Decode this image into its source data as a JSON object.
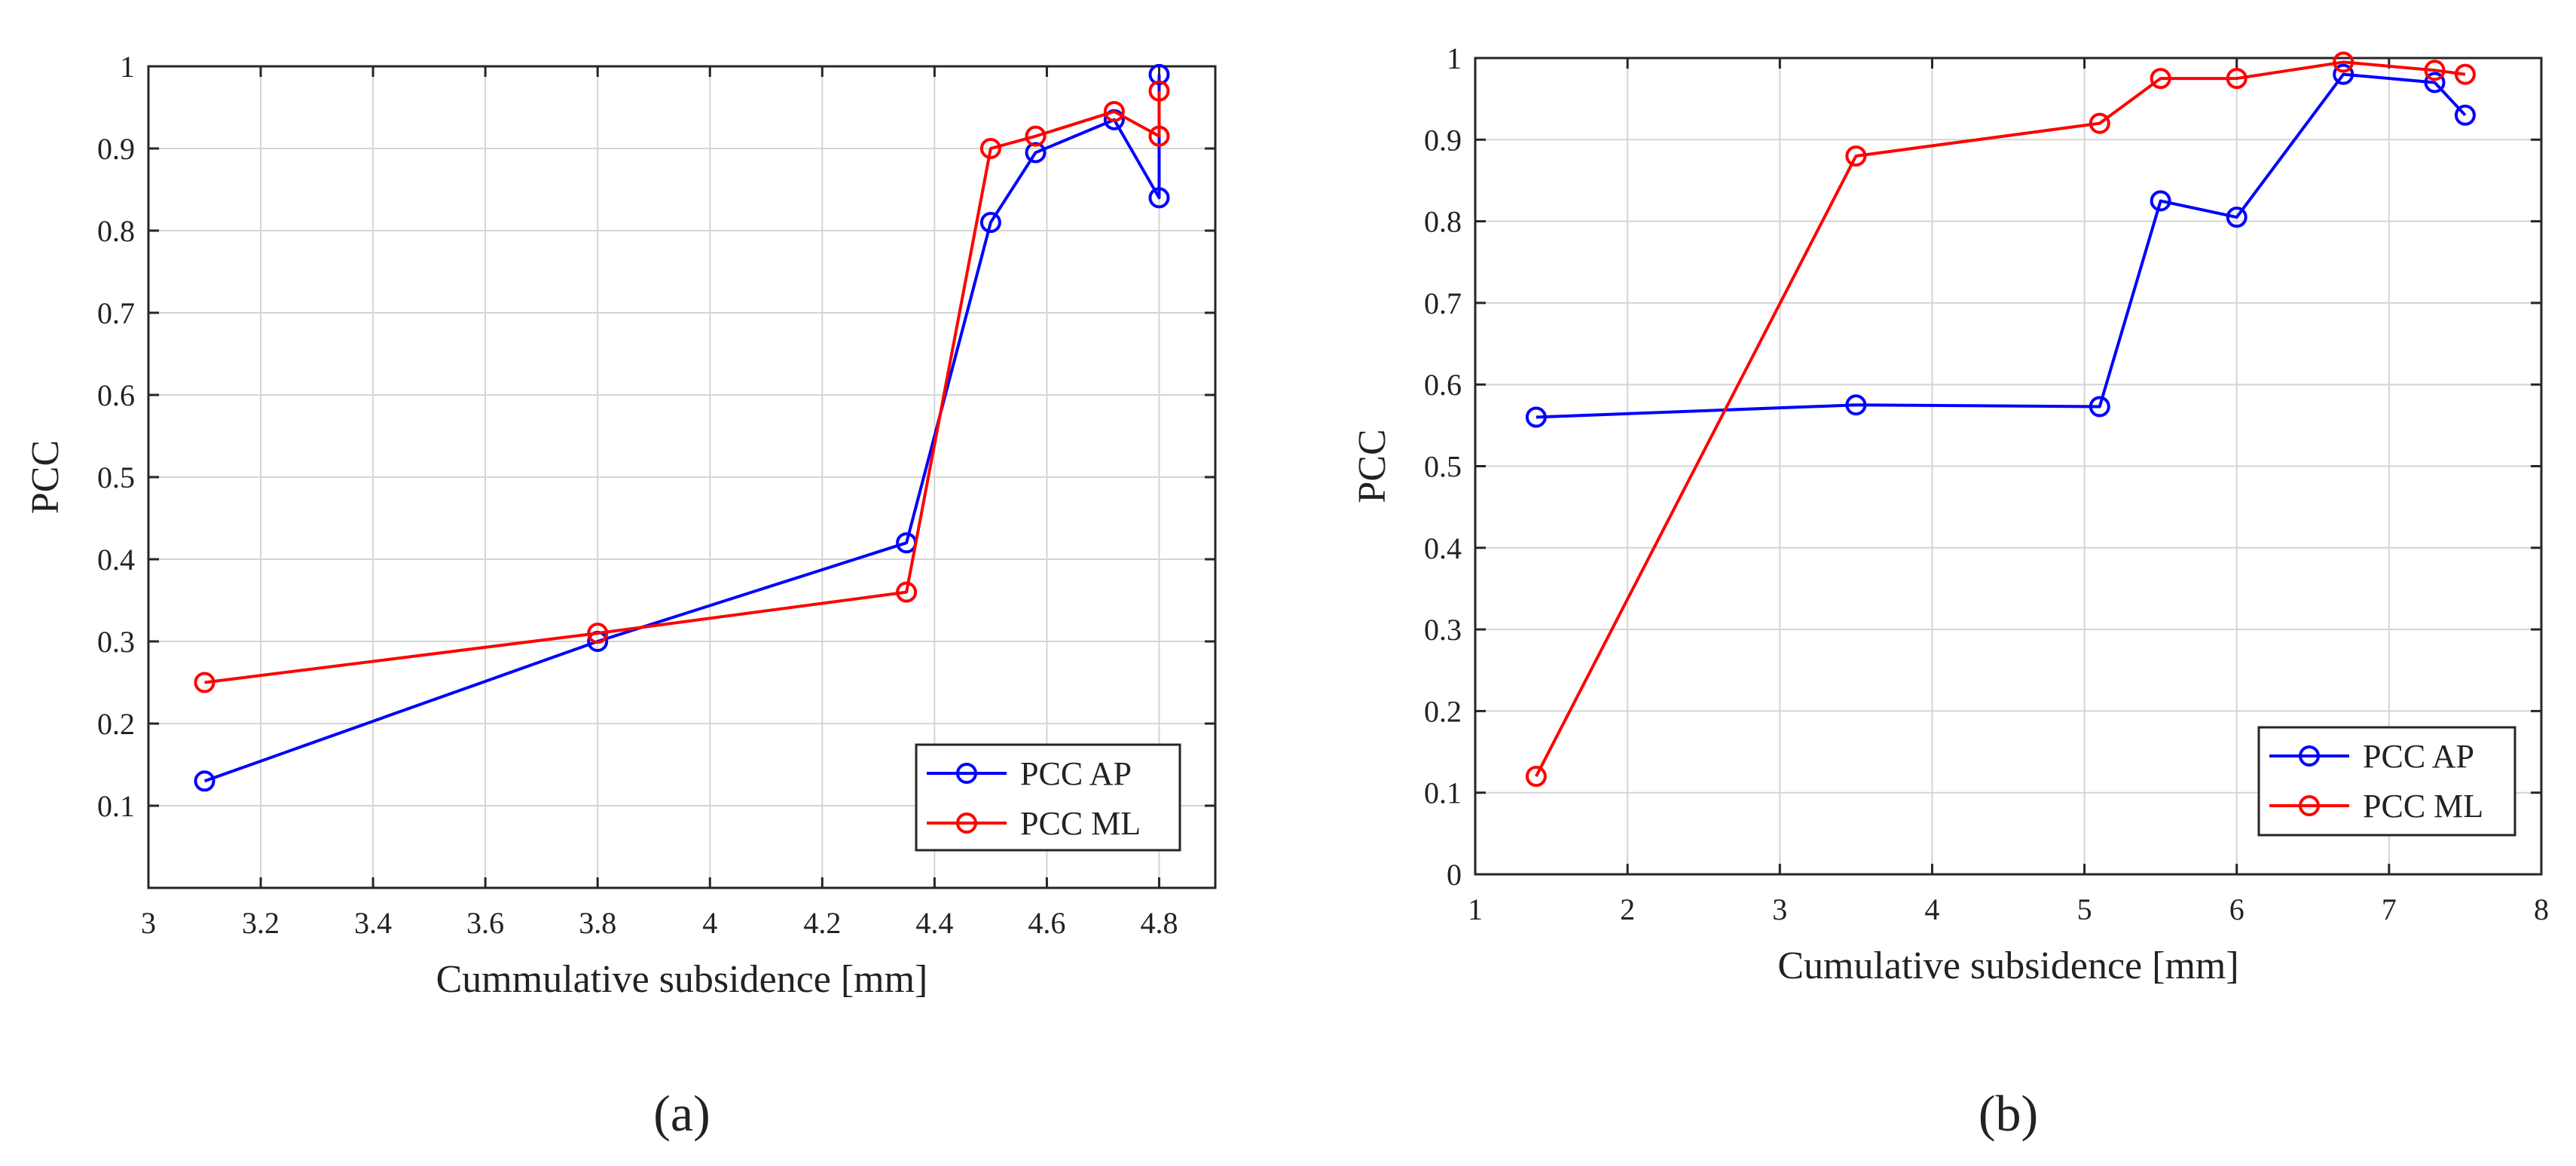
{
  "chart_data": [
    {
      "type": "line",
      "panel_label": "(a)",
      "xlabel": "Cummulative subsidence [mm]",
      "ylabel": "PCC",
      "xlim": [
        3,
        4.9
      ],
      "ylim": [
        0,
        1
      ],
      "xticks": [
        3,
        3.2,
        3.4,
        3.6,
        3.8,
        4,
        4.2,
        4.4,
        4.6,
        4.8
      ],
      "xtick_labels": [
        "3",
        "3.2",
        "3.4",
        "3.6",
        "3.8",
        "4",
        "4.2",
        "4.4",
        "4.6",
        "4.8"
      ],
      "yticks": [
        0.1,
        0.2,
        0.3,
        0.4,
        0.5,
        0.6,
        0.7,
        0.8,
        0.9,
        1
      ],
      "ytick_labels": [
        "0.1",
        "0.2",
        "0.3",
        "0.4",
        "0.5",
        "0.6",
        "0.7",
        "0.8",
        "0.9",
        "1"
      ],
      "grid": true,
      "legend_position": "bottom-right",
      "series": [
        {
          "name": "PCC AP",
          "color": "#0000ff",
          "marker": "circle",
          "x": [
            3.1,
            3.8,
            4.35,
            4.5,
            4.58,
            4.72,
            4.8,
            4.8
          ],
          "y": [
            0.13,
            0.3,
            0.42,
            0.81,
            0.895,
            0.935,
            0.84,
            0.99
          ]
        },
        {
          "name": "PCC ML",
          "color": "#ff0000",
          "marker": "circle",
          "x": [
            3.1,
            3.8,
            4.35,
            4.5,
            4.58,
            4.72,
            4.8,
            4.8
          ],
          "y": [
            0.25,
            0.31,
            0.36,
            0.9,
            0.915,
            0.945,
            0.915,
            0.97
          ]
        }
      ]
    },
    {
      "type": "line",
      "panel_label": "(b)",
      "xlabel": "Cumulative subsidence [mm]",
      "ylabel": "PCC",
      "xlim": [
        1,
        8
      ],
      "ylim": [
        0,
        1
      ],
      "xticks": [
        1,
        2,
        3,
        4,
        5,
        6,
        7,
        8
      ],
      "xtick_labels": [
        "1",
        "2",
        "3",
        "4",
        "5",
        "6",
        "7",
        "8"
      ],
      "yticks": [
        0,
        0.1,
        0.2,
        0.3,
        0.4,
        0.5,
        0.6,
        0.7,
        0.8,
        0.9,
        1
      ],
      "ytick_labels": [
        "0",
        "0.1",
        "0.2",
        "0.3",
        "0.4",
        "0.5",
        "0.6",
        "0.7",
        "0.8",
        "0.9",
        "1"
      ],
      "grid": true,
      "legend_position": "bottom-right",
      "series": [
        {
          "name": "PCC AP",
          "color": "#0000ff",
          "marker": "circle",
          "x": [
            1.4,
            3.5,
            5.1,
            5.5,
            6.0,
            6.7,
            7.3,
            7.5
          ],
          "y": [
            0.56,
            0.575,
            0.573,
            0.825,
            0.805,
            0.98,
            0.97,
            0.93
          ]
        },
        {
          "name": "PCC ML",
          "color": "#ff0000",
          "marker": "circle",
          "x": [
            1.4,
            3.5,
            5.1,
            5.5,
            6.0,
            6.7,
            7.3,
            7.5
          ],
          "y": [
            0.12,
            0.88,
            0.92,
            0.975,
            0.975,
            0.995,
            0.985,
            0.98
          ]
        }
      ]
    }
  ]
}
